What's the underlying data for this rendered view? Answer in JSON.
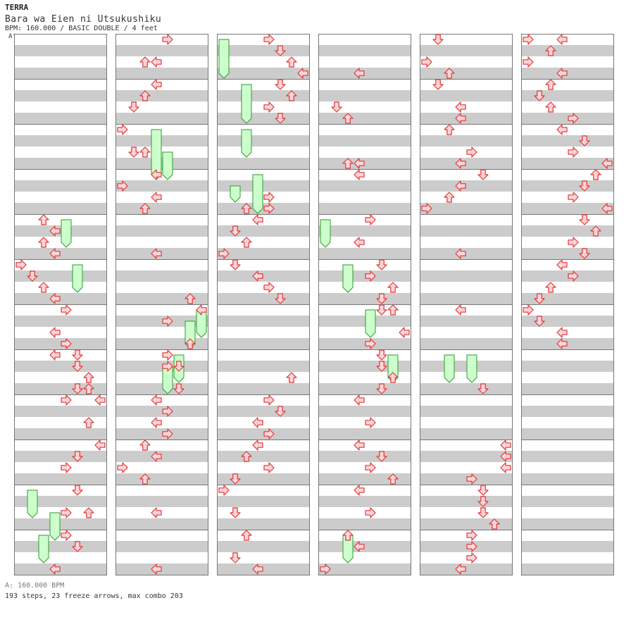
{
  "header": {
    "artist": "TERRA",
    "song_title": "Bara wa Eien ni Utsukushiku",
    "chart_info": "BPM: 160.000 / BASIC DOUBLE / 4 feet",
    "bpm_marker": "A"
  },
  "footer": {
    "bpm_summary": "A: 160.000 BPM",
    "stats": "193 steps, 23 freeze arrows, max combo 203"
  },
  "colors": {
    "arrow_fill": "#ffd6d6",
    "arrow_stroke": "#e0353a",
    "freeze_fill": "#ccffcc",
    "freeze_stroke": "#2f9a2f",
    "stripe": "#cccccc",
    "measure_border": "#777777",
    "bpm_line": "#7aa7e0"
  },
  "chart_data": {
    "type": "step-chart",
    "mode": "BASIC DOUBLE",
    "lane_order": [
      "L1",
      "D1",
      "U1",
      "R1",
      "L2",
      "D2",
      "U2",
      "R2"
    ],
    "measures_per_column": 12,
    "beats_per_measure": 4,
    "notes": [
      {
        "m": 5,
        "b": 0.0,
        "l": 2
      },
      {
        "m": 5,
        "b": 0.5,
        "l": 3
      },
      {
        "m": 5,
        "b": 1.0,
        "l": 2
      },
      {
        "m": 5,
        "b": 1.5,
        "l": 3
      },
      {
        "m": 6,
        "b": 0.0,
        "l": 0
      },
      {
        "m": 6,
        "b": 0.5,
        "l": 1
      },
      {
        "m": 6,
        "b": 1.0,
        "l": 2
      },
      {
        "m": 6,
        "b": 1.5,
        "l": 3
      },
      {
        "m": 7,
        "b": 0.0,
        "l": 4
      },
      {
        "m": 7,
        "b": 1.0,
        "l": 3
      },
      {
        "m": 7,
        "b": 1.5,
        "l": 4
      },
      {
        "m": 7,
        "b": 2.0,
        "l": 3
      },
      {
        "m": 8,
        "b": 0.0,
        "l": 5
      },
      {
        "m": 8,
        "b": 0.5,
        "l": 5
      },
      {
        "m": 8,
        "b": 1.0,
        "l": 6
      },
      {
        "m": 8,
        "b": 1.5,
        "l": 5
      },
      {
        "m": 8,
        "b": 1.5,
        "l": 6
      },
      {
        "m": 9,
        "b": 0.0,
        "l": 4
      },
      {
        "m": 9,
        "b": 0.0,
        "l": 7
      },
      {
        "m": 9,
        "b": 1.0,
        "l": 6
      },
      {
        "m": 10,
        "b": 0.0,
        "l": 7
      },
      {
        "m": 10,
        "b": 0.5,
        "l": 5
      },
      {
        "m": 10,
        "b": 1.0,
        "l": 4
      },
      {
        "m": 11,
        "b": 0.0,
        "l": 5
      },
      {
        "m": 11,
        "b": 1.0,
        "l": 4
      },
      {
        "m": 11,
        "b": 1.0,
        "l": 6
      },
      {
        "m": 12,
        "b": 0.0,
        "l": 4
      },
      {
        "m": 12,
        "b": 0.5,
        "l": 5
      },
      {
        "m": 12,
        "b": 1.5,
        "l": 3
      },
      {
        "m": 1,
        "b": 0.0,
        "l": 4
      },
      {
        "m": 1,
        "b": 1.0,
        "l": 2
      },
      {
        "m": 1,
        "b": 1.0,
        "l": 3
      },
      {
        "m": 2,
        "b": 0.0,
        "l": 3
      },
      {
        "m": 2,
        "b": 0.5,
        "l": 2
      },
      {
        "m": 2,
        "b": 1.0,
        "l": 1
      },
      {
        "m": 3,
        "b": 0.0,
        "l": 0
      },
      {
        "m": 3,
        "b": 1.0,
        "l": 1
      },
      {
        "m": 3,
        "b": 1.0,
        "l": 2
      },
      {
        "m": 4,
        "b": 0.0,
        "l": 3
      },
      {
        "m": 4,
        "b": 0.5,
        "l": 0
      },
      {
        "m": 4,
        "b": 1.0,
        "l": 3
      },
      {
        "m": 4,
        "b": 1.5,
        "l": 2
      },
      {
        "m": 5,
        "b": 1.5,
        "l": 3
      },
      {
        "m": 6,
        "b": 1.5,
        "l": 6
      },
      {
        "m": 6,
        "b": 2.0,
        "l": 7
      },
      {
        "m": 7,
        "b": 0.5,
        "l": 4
      },
      {
        "m": 7,
        "b": 1.5,
        "l": 6
      },
      {
        "m": 8,
        "b": 0.0,
        "l": 4
      },
      {
        "m": 8,
        "b": 0.5,
        "l": 4
      },
      {
        "m": 8,
        "b": 0.5,
        "l": 5
      },
      {
        "m": 8,
        "b": 1.5,
        "l": 5
      },
      {
        "m": 9,
        "b": 0.0,
        "l": 3
      },
      {
        "m": 9,
        "b": 0.5,
        "l": 4
      },
      {
        "m": 9,
        "b": 1.0,
        "l": 3
      },
      {
        "m": 9,
        "b": 1.5,
        "l": 4
      },
      {
        "m": 10,
        "b": 0.0,
        "l": 2
      },
      {
        "m": 10,
        "b": 0.5,
        "l": 3
      },
      {
        "m": 10,
        "b": 1.0,
        "l": 0
      },
      {
        "m": 10,
        "b": 1.5,
        "l": 2
      },
      {
        "m": 11,
        "b": 1.0,
        "l": 3
      },
      {
        "m": 12,
        "b": 1.5,
        "l": 3
      },
      {
        "m": 1,
        "b": 0.0,
        "l": 4
      },
      {
        "m": 1,
        "b": 0.5,
        "l": 5
      },
      {
        "m": 1,
        "b": 1.0,
        "l": 6
      },
      {
        "m": 1,
        "b": 1.5,
        "l": 7
      },
      {
        "m": 2,
        "b": 0.0,
        "l": 5
      },
      {
        "m": 2,
        "b": 0.5,
        "l": 6
      },
      {
        "m": 2,
        "b": 1.0,
        "l": 4
      },
      {
        "m": 2,
        "b": 1.5,
        "l": 5
      },
      {
        "m": 4,
        "b": 1.0,
        "l": 4
      },
      {
        "m": 4,
        "b": 1.5,
        "l": 2
      },
      {
        "m": 4,
        "b": 1.5,
        "l": 4
      },
      {
        "m": 5,
        "b": 0.0,
        "l": 3
      },
      {
        "m": 5,
        "b": 0.5,
        "l": 1
      },
      {
        "m": 5,
        "b": 1.0,
        "l": 2
      },
      {
        "m": 5,
        "b": 1.5,
        "l": 0
      },
      {
        "m": 6,
        "b": 0.0,
        "l": 1
      },
      {
        "m": 6,
        "b": 0.5,
        "l": 3
      },
      {
        "m": 6,
        "b": 1.0,
        "l": 4
      },
      {
        "m": 6,
        "b": 1.5,
        "l": 5
      },
      {
        "m": 8,
        "b": 1.0,
        "l": 6
      },
      {
        "m": 9,
        "b": 0.0,
        "l": 4
      },
      {
        "m": 9,
        "b": 0.5,
        "l": 5
      },
      {
        "m": 9,
        "b": 1.0,
        "l": 3
      },
      {
        "m": 9,
        "b": 1.5,
        "l": 4
      },
      {
        "m": 10,
        "b": 0.0,
        "l": 3
      },
      {
        "m": 10,
        "b": 0.5,
        "l": 2
      },
      {
        "m": 10,
        "b": 1.0,
        "l": 4
      },
      {
        "m": 10,
        "b": 1.5,
        "l": 1
      },
      {
        "m": 11,
        "b": 0.0,
        "l": 0
      },
      {
        "m": 11,
        "b": 1.0,
        "l": 1
      },
      {
        "m": 12,
        "b": 0.0,
        "l": 2
      },
      {
        "m": 12,
        "b": 1.0,
        "l": 1
      },
      {
        "m": 12,
        "b": 1.5,
        "l": 3
      },
      {
        "m": 1,
        "b": 1.5,
        "l": 3
      },
      {
        "m": 2,
        "b": 1.0,
        "l": 1
      },
      {
        "m": 2,
        "b": 1.5,
        "l": 2
      },
      {
        "m": 3,
        "b": 1.5,
        "l": 2
      },
      {
        "m": 3,
        "b": 1.5,
        "l": 3
      },
      {
        "m": 4,
        "b": 0.0,
        "l": 3
      },
      {
        "m": 5,
        "b": 0.0,
        "l": 4
      },
      {
        "m": 5,
        "b": 1.0,
        "l": 3
      },
      {
        "m": 6,
        "b": 0.0,
        "l": 5
      },
      {
        "m": 6,
        "b": 0.5,
        "l": 4
      },
      {
        "m": 6,
        "b": 1.0,
        "l": 6
      },
      {
        "m": 6,
        "b": 1.5,
        "l": 5
      },
      {
        "m": 7,
        "b": 0.0,
        "l": 5
      },
      {
        "m": 7,
        "b": 0.0,
        "l": 6
      },
      {
        "m": 7,
        "b": 1.0,
        "l": 7
      },
      {
        "m": 7,
        "b": 1.5,
        "l": 4
      },
      {
        "m": 8,
        "b": 0.0,
        "l": 5
      },
      {
        "m": 8,
        "b": 0.5,
        "l": 5
      },
      {
        "m": 8,
        "b": 1.0,
        "l": 6
      },
      {
        "m": 8,
        "b": 1.5,
        "l": 5
      },
      {
        "m": 9,
        "b": 0.0,
        "l": 3
      },
      {
        "m": 9,
        "b": 1.0,
        "l": 4
      },
      {
        "m": 10,
        "b": 0.0,
        "l": 3
      },
      {
        "m": 10,
        "b": 0.5,
        "l": 5
      },
      {
        "m": 10,
        "b": 1.0,
        "l": 4
      },
      {
        "m": 10,
        "b": 1.5,
        "l": 6
      },
      {
        "m": 11,
        "b": 0.0,
        "l": 3
      },
      {
        "m": 11,
        "b": 1.0,
        "l": 4
      },
      {
        "m": 12,
        "b": 0.0,
        "l": 2
      },
      {
        "m": 12,
        "b": 0.5,
        "l": 3
      },
      {
        "m": 12,
        "b": 1.5,
        "l": 0
      },
      {
        "m": 1,
        "b": 0.0,
        "l": 1
      },
      {
        "m": 1,
        "b": 1.0,
        "l": 0
      },
      {
        "m": 1,
        "b": 1.5,
        "l": 2
      },
      {
        "m": 2,
        "b": 0.0,
        "l": 1
      },
      {
        "m": 2,
        "b": 1.0,
        "l": 3
      },
      {
        "m": 2,
        "b": 1.5,
        "l": 3
      },
      {
        "m": 3,
        "b": 0.0,
        "l": 2
      },
      {
        "m": 3,
        "b": 1.0,
        "l": 4
      },
      {
        "m": 3,
        "b": 1.5,
        "l": 3
      },
      {
        "m": 4,
        "b": 0.0,
        "l": 5
      },
      {
        "m": 4,
        "b": 0.5,
        "l": 3
      },
      {
        "m": 4,
        "b": 1.0,
        "l": 2
      },
      {
        "m": 4,
        "b": 1.5,
        "l": 0
      },
      {
        "m": 5,
        "b": 1.5,
        "l": 3
      },
      {
        "m": 7,
        "b": 0.0,
        "l": 3
      },
      {
        "m": 8,
        "b": 1.5,
        "l": 5
      },
      {
        "m": 10,
        "b": 0.0,
        "l": 7
      },
      {
        "m": 10,
        "b": 0.5,
        "l": 7
      },
      {
        "m": 10,
        "b": 1.0,
        "l": 7
      },
      {
        "m": 10,
        "b": 1.5,
        "l": 4
      },
      {
        "m": 11,
        "b": 0.0,
        "l": 5
      },
      {
        "m": 11,
        "b": 0.5,
        "l": 5
      },
      {
        "m": 11,
        "b": 1.0,
        "l": 5
      },
      {
        "m": 11,
        "b": 1.5,
        "l": 6
      },
      {
        "m": 12,
        "b": 0.0,
        "l": 4
      },
      {
        "m": 12,
        "b": 0.5,
        "l": 4
      },
      {
        "m": 12,
        "b": 1.0,
        "l": 4
      },
      {
        "m": 12,
        "b": 1.5,
        "l": 3
      },
      {
        "m": 1,
        "b": 0.0,
        "l": 0
      },
      {
        "m": 1,
        "b": 0.0,
        "l": 3
      },
      {
        "m": 1,
        "b": 0.5,
        "l": 2
      },
      {
        "m": 1,
        "b": 1.0,
        "l": 0
      },
      {
        "m": 1,
        "b": 1.5,
        "l": 3
      },
      {
        "m": 2,
        "b": 0.0,
        "l": 2
      },
      {
        "m": 2,
        "b": 0.5,
        "l": 1
      },
      {
        "m": 2,
        "b": 1.0,
        "l": 2
      },
      {
        "m": 2,
        "b": 1.5,
        "l": 4
      },
      {
        "m": 3,
        "b": 0.0,
        "l": 3
      },
      {
        "m": 3,
        "b": 0.5,
        "l": 5
      },
      {
        "m": 3,
        "b": 1.0,
        "l": 4
      },
      {
        "m": 3,
        "b": 1.5,
        "l": 7
      },
      {
        "m": 4,
        "b": 0.0,
        "l": 6
      },
      {
        "m": 4,
        "b": 0.5,
        "l": 5
      },
      {
        "m": 4,
        "b": 1.0,
        "l": 4
      },
      {
        "m": 4,
        "b": 1.5,
        "l": 7
      },
      {
        "m": 5,
        "b": 0.0,
        "l": 5
      },
      {
        "m": 5,
        "b": 0.5,
        "l": 6
      },
      {
        "m": 5,
        "b": 1.0,
        "l": 4
      },
      {
        "m": 5,
        "b": 1.5,
        "l": 5
      },
      {
        "m": 6,
        "b": 0.0,
        "l": 3
      },
      {
        "m": 6,
        "b": 0.5,
        "l": 4
      },
      {
        "m": 6,
        "b": 1.0,
        "l": 2
      },
      {
        "m": 6,
        "b": 1.5,
        "l": 1
      },
      {
        "m": 7,
        "b": 0.0,
        "l": 0
      },
      {
        "m": 7,
        "b": 0.5,
        "l": 1
      },
      {
        "m": 7,
        "b": 1.0,
        "l": 3
      },
      {
        "m": 7,
        "b": 1.5,
        "l": 3
      }
    ],
    "freezes": [
      {
        "m": 5,
        "b": 0.0,
        "l": 4,
        "len": 0.5
      },
      {
        "m": 6,
        "b": 0.0,
        "l": 5,
        "len": 0.5
      },
      {
        "m": 11,
        "b": 0.0,
        "l": 1,
        "len": 0.5
      },
      {
        "m": 11,
        "b": 1.0,
        "l": 3,
        "len": 0.5
      },
      {
        "m": 12,
        "b": 0.0,
        "l": 2,
        "len": 0.5
      },
      {
        "m": 3,
        "b": 0.0,
        "l": 3,
        "len": 1.0
      },
      {
        "m": 3,
        "b": 1.0,
        "l": 4,
        "len": 0.5
      },
      {
        "m": 7,
        "b": 0.0,
        "l": 7,
        "len": 0.5
      },
      {
        "m": 7,
        "b": 0.5,
        "l": 6,
        "len": 0.5
      },
      {
        "m": 8,
        "b": 0.0,
        "l": 5,
        "len": 0.5
      },
      {
        "m": 8,
        "b": 0.5,
        "l": 4,
        "len": 0.5
      },
      {
        "m": 1,
        "b": 0.0,
        "l": 0,
        "len": 0.75
      },
      {
        "m": 2,
        "b": 0.0,
        "l": 2,
        "len": 0.75
      },
      {
        "m": 3,
        "b": 0.0,
        "l": 2,
        "len": 0.5
      },
      {
        "m": 4,
        "b": 0.0,
        "l": 3,
        "len": 0.75
      },
      {
        "m": 4,
        "b": 0.5,
        "l": 1,
        "len": 0.25
      },
      {
        "m": 5,
        "b": 0.0,
        "l": 0,
        "len": 0.5
      },
      {
        "m": 6,
        "b": 0.0,
        "l": 2,
        "len": 0.5
      },
      {
        "m": 7,
        "b": 0.0,
        "l": 4,
        "len": 0.5
      },
      {
        "m": 8,
        "b": 0.0,
        "l": 6,
        "len": 0.5
      },
      {
        "m": 12,
        "b": 0.0,
        "l": 2,
        "len": 0.5
      },
      {
        "m": 8,
        "b": 0.0,
        "l": 2,
        "len": 0.5
      },
      {
        "m": 8,
        "b": 0.0,
        "l": 4,
        "len": 0.5
      }
    ]
  }
}
